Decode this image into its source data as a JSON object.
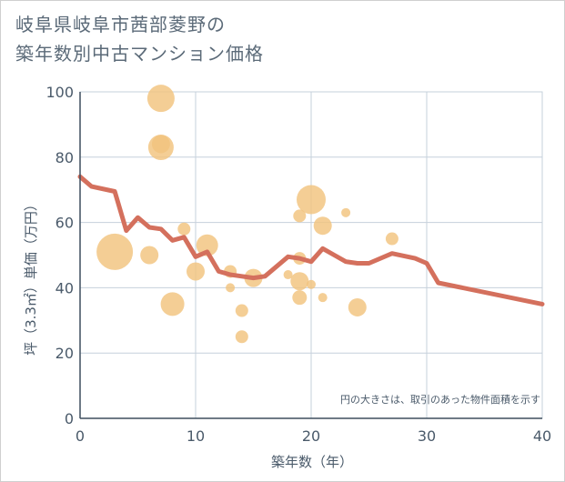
{
  "title_line1": "岐阜県岐阜市茜部菱野の",
  "title_line2": "築年数別中古マンション価格",
  "note": "円の大きさは、取引のあった物件面積を示す",
  "chart_data": {
    "type": "scatter",
    "xlabel": "築年数（年）",
    "ylabel": "坪（3.3㎡）単価（万円）",
    "xlim": [
      0,
      40
    ],
    "ylim": [
      0,
      100
    ],
    "x_ticks": [
      0,
      10,
      20,
      30,
      40
    ],
    "y_ticks": [
      0,
      20,
      40,
      60,
      80,
      100
    ],
    "grid": true,
    "colors": {
      "bubble": "#f2c37e",
      "line": "#d4705d",
      "grid": "#c6d0db"
    },
    "bubbles": [
      {
        "x": 3,
        "y": 51,
        "r": 20
      },
      {
        "x": 6,
        "y": 50,
        "r": 10
      },
      {
        "x": 7,
        "y": 98,
        "r": 15
      },
      {
        "x": 7,
        "y": 83,
        "r": 14
      },
      {
        "x": 7,
        "y": 84,
        "r": 10
      },
      {
        "x": 8,
        "y": 35,
        "r": 13
      },
      {
        "x": 9,
        "y": 58,
        "r": 7
      },
      {
        "x": 10,
        "y": 45,
        "r": 10
      },
      {
        "x": 11,
        "y": 53,
        "r": 12
      },
      {
        "x": 13,
        "y": 40,
        "r": 5
      },
      {
        "x": 13,
        "y": 45,
        "r": 7
      },
      {
        "x": 14,
        "y": 33,
        "r": 7
      },
      {
        "x": 14,
        "y": 25,
        "r": 7
      },
      {
        "x": 15,
        "y": 43,
        "r": 10
      },
      {
        "x": 18,
        "y": 44,
        "r": 5
      },
      {
        "x": 19,
        "y": 62,
        "r": 7
      },
      {
        "x": 19,
        "y": 49,
        "r": 7
      },
      {
        "x": 19,
        "y": 42,
        "r": 10
      },
      {
        "x": 19,
        "y": 37,
        "r": 8
      },
      {
        "x": 20,
        "y": 67,
        "r": 16
      },
      {
        "x": 20,
        "y": 41,
        "r": 5
      },
      {
        "x": 21,
        "y": 59,
        "r": 10
      },
      {
        "x": 21,
        "y": 37,
        "r": 5
      },
      {
        "x": 23,
        "y": 63,
        "r": 5
      },
      {
        "x": 24,
        "y": 34,
        "r": 10
      },
      {
        "x": 27,
        "y": 55,
        "r": 7
      }
    ],
    "trend_line": [
      [
        0,
        74
      ],
      [
        1,
        71
      ],
      [
        3,
        69.5
      ],
      [
        4,
        57.5
      ],
      [
        5,
        61.5
      ],
      [
        6,
        58.5
      ],
      [
        7,
        58
      ],
      [
        8,
        54.5
      ],
      [
        9,
        55.5
      ],
      [
        10,
        49.5
      ],
      [
        11,
        51
      ],
      [
        12,
        45
      ],
      [
        13,
        44
      ],
      [
        14,
        43.5
      ],
      [
        15,
        43
      ],
      [
        16,
        43.5
      ],
      [
        18,
        49.5
      ],
      [
        19,
        49
      ],
      [
        20,
        48
      ],
      [
        21,
        52
      ],
      [
        22,
        50
      ],
      [
        23,
        48
      ],
      [
        24,
        47.5
      ],
      [
        25,
        47.5
      ],
      [
        27,
        50.5
      ],
      [
        29,
        49
      ],
      [
        30,
        47.5
      ],
      [
        31,
        41.5
      ],
      [
        40,
        35
      ]
    ]
  }
}
